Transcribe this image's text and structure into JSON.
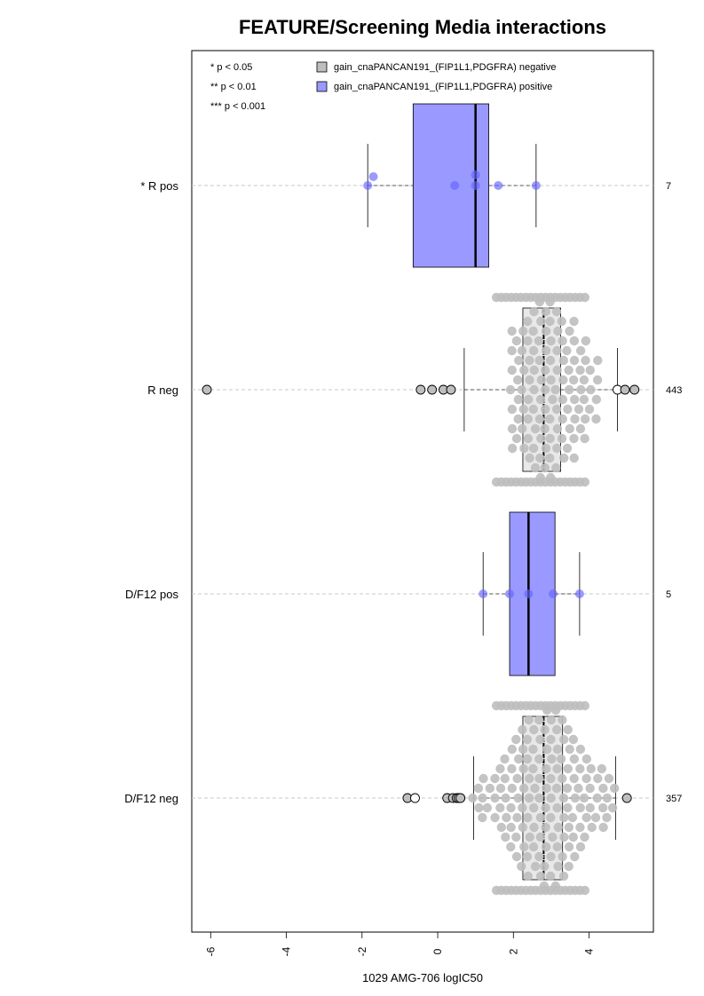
{
  "chart_data": {
    "type": "boxplot",
    "title": "FEATURE/Screening Media interactions",
    "xlabel": "1029 AMG-706 logIC50",
    "xlim": [
      -6.5,
      5.7
    ],
    "xticks": [
      -6,
      -4,
      -2,
      0,
      2,
      4
    ],
    "orientation": "horizontal",
    "grid": "dashed horizontal lines at each group",
    "legend": {
      "position": "top",
      "significance": [
        "* p < 0.05",
        "** p < 0.01",
        "*** p < 0.001"
      ],
      "entries": [
        {
          "label": "gain_cnaPANCAN191_(FIP1L1,PDGFRA) negative",
          "color": "#bebebe"
        },
        {
          "label": "gain_cnaPANCAN191_(FIP1L1,PDGFRA) positive",
          "color": "#9999ff"
        }
      ]
    },
    "groups": [
      {
        "label": "* R pos",
        "n": "7",
        "kind": "positive",
        "box": {
          "whisker_low": -1.85,
          "q1": -0.65,
          "median": 1.0,
          "q3": 1.35,
          "whisker_high": 2.6
        },
        "points": [
          -1.85,
          -1.7,
          0.45,
          1.0,
          1.0,
          1.6,
          2.6
        ]
      },
      {
        "label": "R neg",
        "n": "443",
        "kind": "negative",
        "box": {
          "whisker_low": 0.7,
          "q1": 2.25,
          "median": 2.8,
          "q3": 3.25,
          "whisker_high": 4.75
        },
        "outliers": [
          -6.1,
          -0.45,
          -0.15,
          0.15,
          0.35,
          4.75,
          4.95,
          5.2
        ],
        "density": {
          "min": 1.95,
          "max": 4.2,
          "n_points": 443
        }
      },
      {
        "label": "D/F12 pos",
        "n": "5",
        "kind": "positive",
        "box": {
          "whisker_low": 1.2,
          "q1": 1.9,
          "median": 2.4,
          "q3": 3.1,
          "whisker_high": 3.75
        },
        "points": [
          1.2,
          1.9,
          2.4,
          3.05,
          3.75
        ]
      },
      {
        "label": "D/F12 neg",
        "n": "357",
        "kind": "negative",
        "box": {
          "whisker_low": 0.95,
          "q1": 2.25,
          "median": 2.8,
          "q3": 3.3,
          "whisker_high": 4.7
        },
        "outliers": [
          -0.8,
          -0.6,
          0.25,
          0.4,
          0.5,
          0.55,
          0.6,
          5.0
        ],
        "density": {
          "min": 0.6,
          "max": 4.6,
          "n_points": 357
        }
      }
    ]
  }
}
